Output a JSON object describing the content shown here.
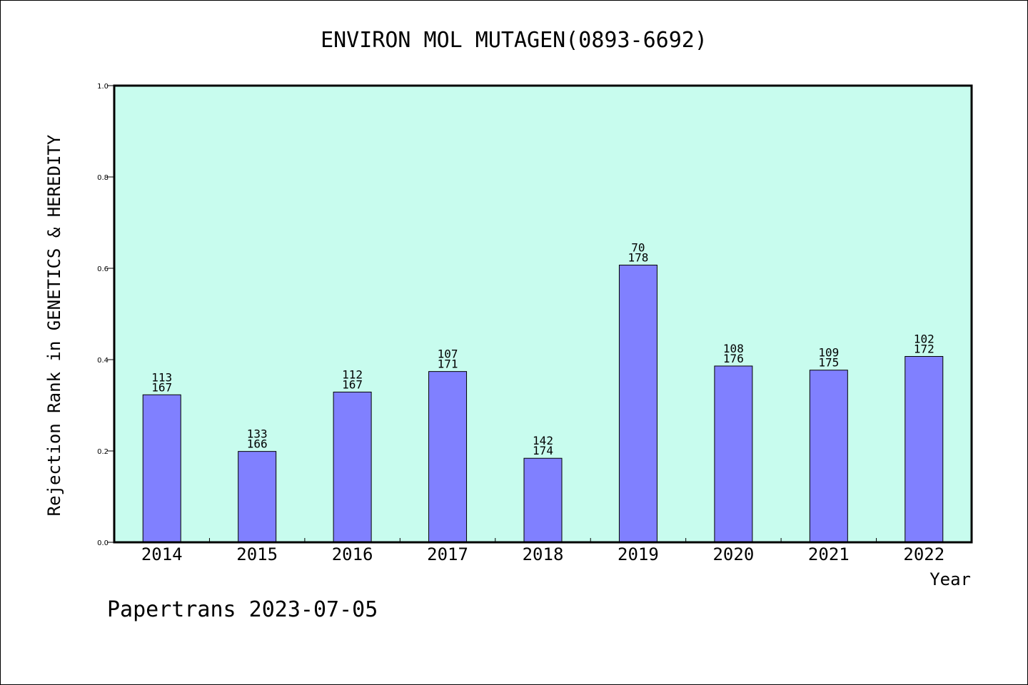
{
  "chart_data": {
    "type": "bar",
    "title": "ENVIRON MOL MUTAGEN(0893-6692)",
    "xlabel": "Year",
    "ylabel": "Rejection Rank in GENETICS & HEREDITY",
    "categories": [
      "2014",
      "2015",
      "2016",
      "2017",
      "2018",
      "2019",
      "2020",
      "2021",
      "2022"
    ],
    "values": [
      0.323,
      0.199,
      0.329,
      0.374,
      0.184,
      0.607,
      0.386,
      0.377,
      0.407
    ],
    "rank_labels": [
      "113",
      "133",
      "112",
      "107",
      "142",
      "70",
      "108",
      "109",
      "102"
    ],
    "total_labels": [
      "167",
      "166",
      "167",
      "171",
      "174",
      "178",
      "176",
      "175",
      "172"
    ],
    "ylim": [
      0,
      1.0
    ],
    "yticks": [
      "0.0",
      "0.2",
      "0.4",
      "0.6",
      "0.8",
      "1.0"
    ],
    "grid": false,
    "colors": {
      "plot_background": "#c8fcee",
      "bar_fill": "#8080ff",
      "bar_stroke": "#000000"
    }
  },
  "footer": "Papertrans 2023-07-05"
}
